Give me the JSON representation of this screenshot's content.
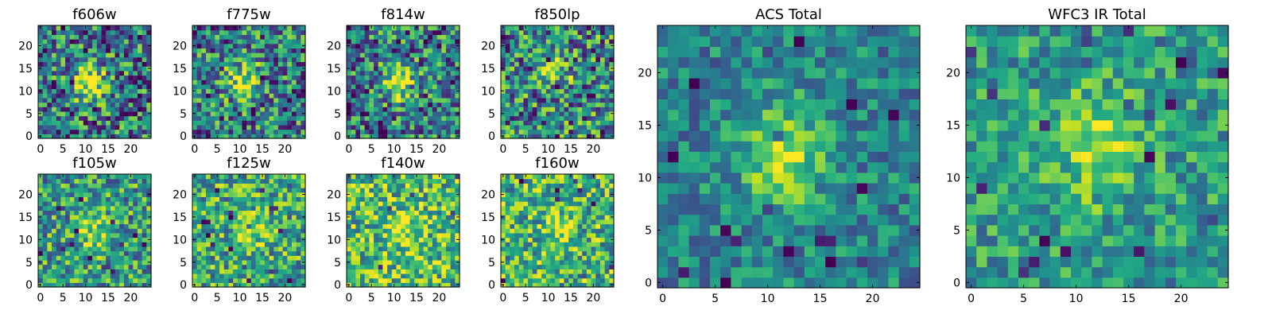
{
  "chart_data": [
    {
      "type": "heatmap",
      "title": "f606w",
      "xlim": [
        0,
        24
      ],
      "ylim": [
        0,
        24
      ],
      "xticks": [
        0,
        5,
        10,
        15,
        20
      ],
      "yticks": [
        0,
        5,
        10,
        15,
        20
      ],
      "grid_size": 25,
      "colormap": "viridis",
      "blob_center": [
        11,
        12
      ],
      "blob_strength": 0.55,
      "noise_level": 0.85,
      "base_level": 0.42
    },
    {
      "type": "heatmap",
      "title": "f775w",
      "xlim": [
        0,
        24
      ],
      "ylim": [
        0,
        24
      ],
      "xticks": [
        0,
        5,
        10,
        15,
        20
      ],
      "yticks": [
        0,
        5,
        10,
        15,
        20
      ],
      "grid_size": 25,
      "colormap": "viridis",
      "blob_center": [
        11,
        12
      ],
      "blob_strength": 0.6,
      "noise_level": 0.85,
      "base_level": 0.42
    },
    {
      "type": "heatmap",
      "title": "f814w",
      "xlim": [
        0,
        24
      ],
      "ylim": [
        0,
        24
      ],
      "xticks": [
        0,
        5,
        10,
        15,
        20
      ],
      "yticks": [
        0,
        5,
        10,
        15,
        20
      ],
      "grid_size": 25,
      "colormap": "viridis",
      "blob_center": [
        11,
        12
      ],
      "blob_strength": 0.55,
      "noise_level": 0.85,
      "base_level": 0.42
    },
    {
      "type": "heatmap",
      "title": "f850lp",
      "xlim": [
        0,
        24
      ],
      "ylim": [
        0,
        24
      ],
      "xticks": [
        0,
        5,
        10,
        15,
        20
      ],
      "yticks": [
        0,
        5,
        10,
        15,
        20
      ],
      "grid_size": 25,
      "colormap": "viridis",
      "blob_center": [
        12,
        14
      ],
      "blob_strength": 0.3,
      "noise_level": 0.9,
      "base_level": 0.45
    },
    {
      "type": "heatmap",
      "title": "f105w",
      "xlim": [
        0,
        24
      ],
      "ylim": [
        0,
        24
      ],
      "xticks": [
        0,
        5,
        10,
        15,
        20
      ],
      "yticks": [
        0,
        5,
        10,
        15,
        20
      ],
      "grid_size": 25,
      "colormap": "viridis",
      "blob_center": [
        12,
        11
      ],
      "blob_strength": 0.35,
      "noise_level": 0.7,
      "base_level": 0.55
    },
    {
      "type": "heatmap",
      "title": "f125w",
      "xlim": [
        0,
        24
      ],
      "ylim": [
        0,
        24
      ],
      "xticks": [
        0,
        5,
        10,
        15,
        20
      ],
      "yticks": [
        0,
        5,
        10,
        15,
        20
      ],
      "grid_size": 25,
      "colormap": "viridis",
      "blob_center": [
        12,
        12
      ],
      "blob_strength": 0.3,
      "noise_level": 0.7,
      "base_level": 0.6
    },
    {
      "type": "heatmap",
      "title": "f140w",
      "xlim": [
        0,
        24
      ],
      "ylim": [
        0,
        24
      ],
      "xticks": [
        0,
        5,
        10,
        15,
        20
      ],
      "yticks": [
        0,
        5,
        10,
        15,
        20
      ],
      "grid_size": 25,
      "colormap": "viridis",
      "blob_center": [
        12,
        12
      ],
      "blob_strength": 0.25,
      "noise_level": 0.7,
      "base_level": 0.68
    },
    {
      "type": "heatmap",
      "title": "f160w",
      "xlim": [
        0,
        24
      ],
      "ylim": [
        0,
        24
      ],
      "xticks": [
        0,
        5,
        10,
        15,
        20
      ],
      "yticks": [
        0,
        5,
        10,
        15,
        20
      ],
      "grid_size": 25,
      "colormap": "viridis",
      "blob_center": [
        12,
        12
      ],
      "blob_strength": 0.25,
      "noise_level": 0.7,
      "base_level": 0.65
    },
    {
      "type": "heatmap",
      "title": "ACS Total",
      "xlim": [
        0,
        24
      ],
      "ylim": [
        0,
        24
      ],
      "xticks": [
        0,
        5,
        10,
        15,
        20
      ],
      "yticks": [
        0,
        5,
        10,
        15,
        20
      ],
      "grid_size": 25,
      "colormap": "viridis",
      "blob_center": [
        11.5,
        12
      ],
      "blob_strength": 0.45,
      "noise_level": 0.45,
      "base_level": 0.45
    },
    {
      "type": "heatmap",
      "title": "WFC3 IR Total",
      "xlim": [
        0,
        24
      ],
      "ylim": [
        0,
        24
      ],
      "xticks": [
        0,
        5,
        10,
        15,
        20
      ],
      "yticks": [
        0,
        5,
        10,
        15,
        20
      ],
      "grid_size": 25,
      "colormap": "viridis",
      "blob_center": [
        12,
        13
      ],
      "blob_strength": 0.35,
      "noise_level": 0.5,
      "base_level": 0.55
    }
  ]
}
